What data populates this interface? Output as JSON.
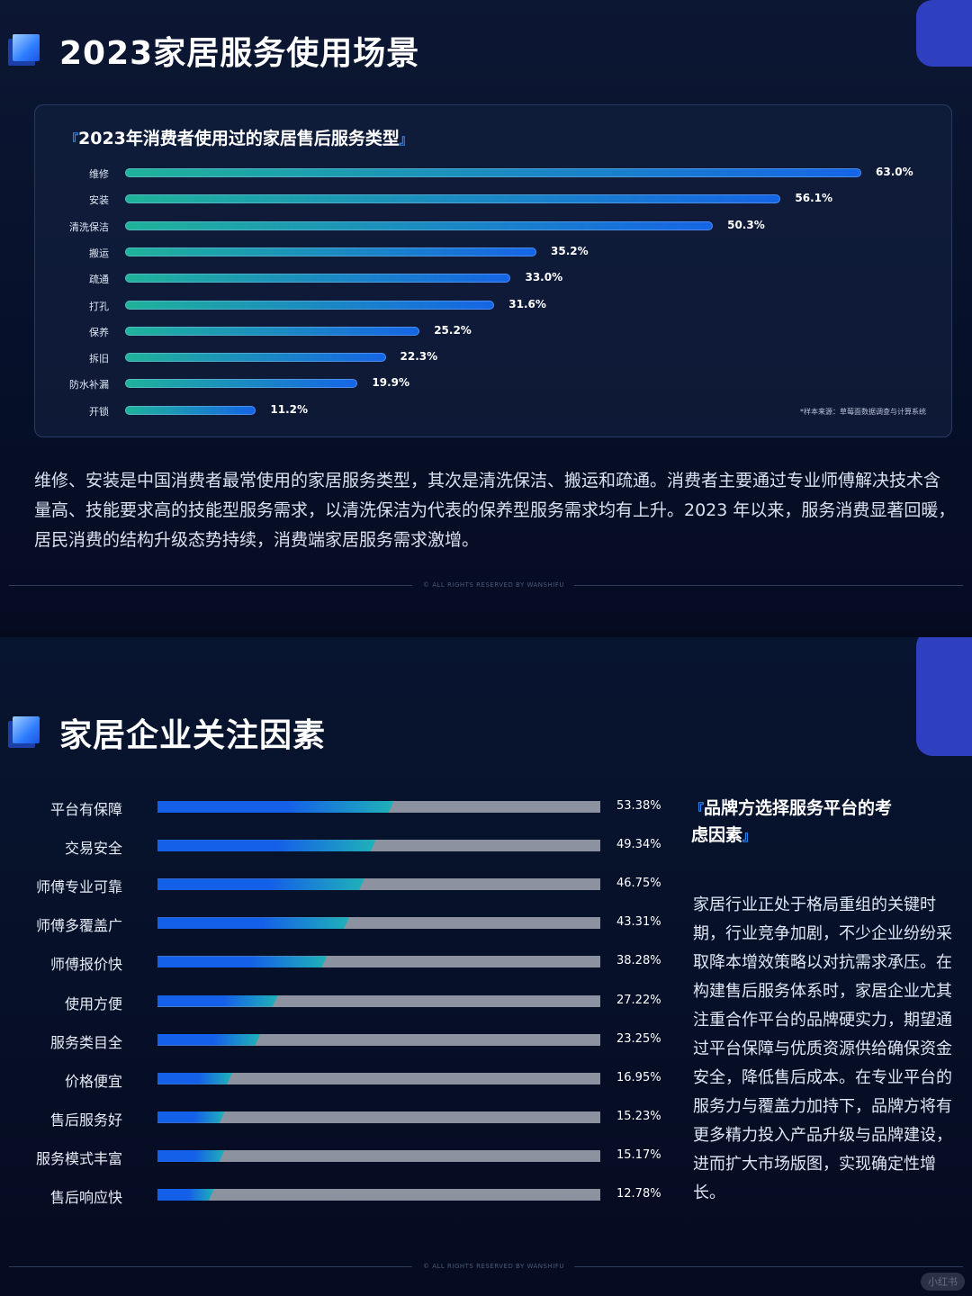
{
  "section1": {
    "title": "2023家居服务使用场景",
    "panel_title": "2023年消费者使用过的家居售后服务类型",
    "bracket_open": "『",
    "bracket_close": "』",
    "source": "*样本来源：草莓面数据调查与计算系统",
    "paragraph": "维修、安装是中国消费者最常使用的家居服务类型，其次是清洗保洁、搬运和疏通。消费者主要通过专业师傅解决技术含量高、技能要求高的技能型服务需求，以清洗保洁为代表的保养型服务需求均有上升。2023 年以来，服务消费显著回暖，居民消费的结构升级态势持续，消费端家居服务需求激增。",
    "footer": "© ALL RIGHTS RESERVED BY WANSHIFU"
  },
  "section2": {
    "title": "家居企业关注因素",
    "side_title": "品牌方选择服务平台的考虑因素",
    "bracket_open": "『",
    "bracket_close": "』",
    "side_text": "家居行业正处于格局重组的关键时期，行业竞争加剧，不少企业纷纷采取降本增效策略以对抗需求承压。在构建售后服务体系时，家居企业尤其注重合作平台的品牌硬实力，期望通过平台保障与优质资源供给确保资金安全，降低售后成本。在专业平台的服务力与覆盖力加持下，品牌方将有更多精力投入产品升级与品牌建设，进而扩大市场版图，实现确定性增长。",
    "footer": "© ALL RIGHTS RESERVED BY WANSHIFU"
  },
  "watermark": "小红书",
  "colors": {
    "c1_start": "#1fb39a",
    "c1_end": "#1565e6",
    "c2_start": "#1560e8",
    "c2_end": "#1fb2b8",
    "track": "#8c92a0",
    "accent": "#2f8cff"
  },
  "chart_data": [
    {
      "type": "bar",
      "orientation": "horizontal",
      "title": "2023年消费者使用过的家居售后服务类型",
      "categories": [
        "维修",
        "安装",
        "清洗保洁",
        "搬运",
        "疏通",
        "打孔",
        "保养",
        "拆旧",
        "防水补漏",
        "开锁"
      ],
      "values": [
        63.0,
        56.1,
        50.3,
        35.2,
        33.0,
        31.6,
        25.2,
        22.3,
        19.9,
        11.2
      ],
      "labels": [
        "63.0%",
        "56.1%",
        "50.3%",
        "35.2%",
        "33.0%",
        "31.6%",
        "25.2%",
        "22.3%",
        "19.9%",
        "11.2%"
      ],
      "unit": "%",
      "xlim": [
        0,
        63
      ]
    },
    {
      "type": "bar",
      "orientation": "horizontal",
      "title": "家居企业关注因素",
      "categories": [
        "平台有保障",
        "交易安全",
        "师傅专业可靠",
        "师傅多覆盖广",
        "师傅报价快",
        "使用方便",
        "服务类目全",
        "价格便宜",
        "售后服务好",
        "服务模式丰富",
        "售后响应快"
      ],
      "values": [
        53.38,
        49.34,
        46.75,
        43.31,
        38.28,
        27.22,
        23.25,
        16.95,
        15.23,
        15.17,
        12.78
      ],
      "labels": [
        "53.38%",
        "49.34%",
        "46.75%",
        "43.31%",
        "38.28%",
        "27.22%",
        "23.25%",
        "16.95%",
        "15.23%",
        "15.17%",
        "12.78%"
      ],
      "unit": "%",
      "xlim": [
        0,
        100
      ]
    }
  ]
}
